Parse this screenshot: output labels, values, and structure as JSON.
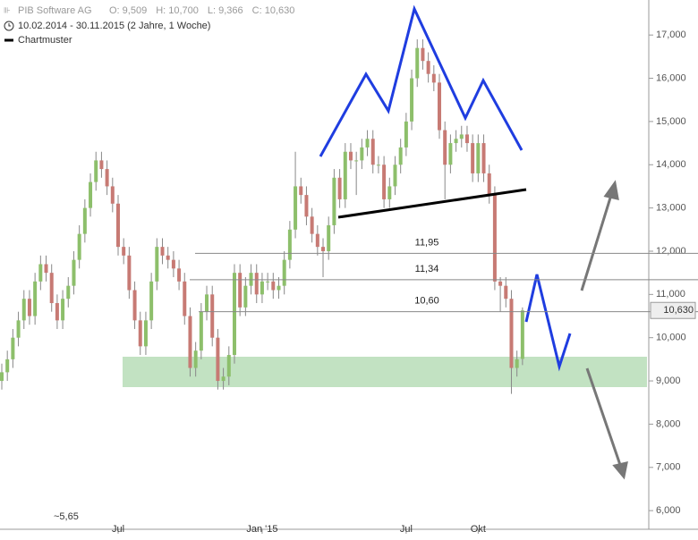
{
  "chart_data": {
    "type": "candlestick",
    "title": "PIB Software AG",
    "quote_header": [
      "O: 9,509",
      "H: 10,700",
      "L: 9,366",
      "C: 10,630"
    ],
    "period": "10.02.2014 - 30.11.2015 (2 Jahre, 1 Woche)",
    "legend": "Chartmuster",
    "categories": [
      null,
      null,
      null,
      null,
      null,
      null,
      null,
      null,
      null,
      null,
      null,
      null,
      null,
      null,
      null,
      null,
      null,
      null,
      null,
      null,
      null,
      "Jul",
      null,
      null,
      null,
      null,
      null,
      null,
      null,
      null,
      null,
      null,
      null,
      null,
      null,
      null,
      null,
      null,
      null,
      null,
      null,
      null,
      null,
      null,
      null,
      null,
      null,
      "Jan '15",
      null,
      null,
      null,
      null,
      null,
      null,
      null,
      null,
      null,
      null,
      null,
      null,
      null,
      null,
      null,
      null,
      null,
      null,
      null,
      null,
      null,
      null,
      null,
      null,
      null,
      "Jul",
      null,
      null,
      null,
      null,
      null,
      null,
      null,
      null,
      null,
      null,
      null,
      null,
      "Okt",
      null,
      null,
      null,
      null,
      null,
      null,
      null,
      null
    ],
    "open": [
      9.0,
      9.2,
      9.5,
      10.0,
      10.4,
      10.9,
      10.5,
      11.3,
      11.7,
      11.5,
      10.8,
      10.4,
      10.9,
      11.2,
      11.8,
      12.4,
      13.0,
      13.6,
      14.1,
      13.9,
      13.5,
      13.1,
      12.1,
      11.9,
      11.1,
      10.4,
      9.8,
      10.4,
      11.3,
      12.1,
      11.9,
      11.8,
      11.6,
      11.3,
      10.5,
      9.3,
      9.7,
      10.6,
      11.0,
      10.0,
      9.0,
      9.1,
      9.6,
      11.5,
      10.7,
      11.2,
      11.5,
      11.0,
      11.3,
      11.3,
      11.1,
      11.2,
      11.8,
      12.5,
      13.5,
      13.3,
      12.8,
      12.4,
      12.1,
      12.0,
      12.6,
      13.7,
      13.2,
      14.3,
      14.1,
      14.1,
      14.4,
      14.6,
      14.0,
      14.0,
      13.2,
      13.5,
      14.0,
      14.4,
      15.0,
      16.0,
      16.7,
      16.4,
      16.1,
      15.9,
      14.8,
      14.0,
      14.5,
      14.6,
      14.7,
      14.5,
      13.8,
      14.5,
      13.8,
      13.3,
      11.3,
      11.2,
      10.9,
      9.3,
      9.509
    ],
    "high": [
      9.4,
      9.7,
      10.2,
      10.6,
      11.1,
      11.1,
      11.5,
      11.9,
      11.9,
      11.7,
      11.0,
      11.1,
      11.4,
      12.0,
      12.6,
      13.2,
      13.8,
      14.3,
      14.3,
      14.1,
      13.7,
      13.3,
      12.3,
      12.1,
      11.3,
      10.6,
      10.6,
      11.5,
      12.3,
      12.3,
      12.1,
      12.0,
      11.8,
      11.5,
      10.7,
      9.9,
      10.8,
      11.2,
      11.2,
      10.2,
      9.3,
      9.8,
      11.7,
      11.7,
      11.4,
      11.7,
      11.7,
      11.5,
      11.5,
      11.5,
      11.4,
      12.0,
      12.7,
      14.3,
      13.7,
      13.5,
      13.0,
      12.6,
      12.3,
      12.8,
      13.9,
      13.9,
      14.5,
      14.5,
      14.3,
      14.6,
      14.8,
      14.8,
      14.2,
      14.2,
      13.7,
      14.2,
      14.6,
      15.2,
      16.2,
      16.9,
      16.9,
      16.6,
      16.3,
      16.1,
      15.0,
      14.7,
      14.8,
      14.9,
      14.9,
      14.7,
      14.7,
      14.7,
      14.0,
      13.5,
      11.4,
      11.4,
      11.1,
      9.7,
      10.7
    ],
    "low": [
      8.8,
      9.0,
      9.3,
      9.8,
      10.2,
      10.3,
      10.3,
      11.1,
      11.3,
      10.6,
      10.2,
      10.2,
      10.7,
      11.0,
      11.6,
      12.2,
      12.8,
      13.4,
      13.7,
      13.3,
      12.9,
      11.9,
      11.7,
      10.9,
      10.2,
      9.6,
      9.6,
      10.2,
      11.1,
      11.7,
      11.6,
      11.4,
      11.1,
      10.3,
      9.1,
      9.1,
      9.5,
      10.4,
      9.8,
      8.8,
      8.8,
      8.9,
      9.4,
      10.5,
      10.5,
      11.0,
      10.8,
      10.8,
      11.1,
      10.9,
      10.9,
      11.0,
      11.6,
      12.3,
      13.1,
      12.6,
      12.2,
      11.9,
      11.4,
      11.8,
      12.4,
      13.0,
      13.0,
      13.9,
      13.3,
      13.9,
      14.2,
      13.8,
      13.8,
      13.0,
      13.0,
      13.3,
      13.8,
      14.2,
      14.8,
      15.8,
      16.2,
      15.9,
      15.7,
      14.6,
      13.2,
      13.8,
      14.3,
      14.4,
      14.3,
      13.6,
      13.6,
      13.6,
      13.1,
      11.1,
      10.6,
      10.7,
      8.7,
      9.1,
      9.366
    ],
    "close": [
      9.2,
      9.5,
      10.0,
      10.4,
      10.9,
      10.5,
      11.3,
      11.7,
      11.5,
      10.8,
      10.4,
      10.9,
      11.2,
      11.8,
      12.4,
      13.0,
      13.6,
      14.1,
      13.9,
      13.5,
      13.1,
      12.1,
      11.9,
      11.1,
      10.4,
      9.8,
      10.4,
      11.3,
      12.1,
      11.9,
      11.8,
      11.6,
      11.3,
      10.5,
      9.3,
      9.7,
      10.6,
      11.0,
      10.0,
      9.0,
      9.1,
      9.6,
      11.5,
      10.7,
      11.2,
      11.5,
      11.0,
      11.3,
      11.3,
      11.1,
      11.2,
      11.8,
      12.5,
      13.5,
      13.3,
      12.8,
      12.4,
      12.1,
      12.0,
      12.6,
      13.7,
      13.2,
      14.3,
      14.1,
      14.1,
      14.4,
      14.6,
      14.0,
      14.0,
      13.2,
      13.5,
      14.0,
      14.4,
      15.0,
      16.0,
      16.7,
      16.4,
      16.1,
      15.9,
      14.8,
      14.0,
      14.5,
      14.6,
      14.7,
      14.5,
      13.8,
      14.5,
      13.8,
      13.3,
      11.3,
      11.2,
      10.9,
      9.3,
      9.5,
      10.63
    ],
    "up_color": "#8dbf6b",
    "down_color": "#c77a74",
    "ylim": [
      5.61,
      17.81
    ],
    "yticks": [
      {
        "value": 6,
        "label": "6,000"
      },
      {
        "value": 7,
        "label": "7,000"
      },
      {
        "value": 8,
        "label": "8,000"
      },
      {
        "value": 9,
        "label": "9,000"
      },
      {
        "value": 10,
        "label": "10,000"
      },
      {
        "value": 11,
        "label": "11,000"
      },
      {
        "value": 12,
        "label": "12,000"
      },
      {
        "value": 13,
        "label": "13,000"
      },
      {
        "value": 14,
        "label": "14,000"
      },
      {
        "value": 15,
        "label": "15,000"
      },
      {
        "value": 16,
        "label": "16,000"
      },
      {
        "value": 17,
        "label": "17,000"
      }
    ],
    "levels": [
      {
        "value": 11.95,
        "label": "11,95"
      },
      {
        "value": 11.34,
        "label": "11,34"
      },
      {
        "value": 10.6,
        "label": "10,60"
      }
    ],
    "last_price": {
      "value": 10.63,
      "label": "10,630"
    },
    "low_note": "~5,65"
  }
}
